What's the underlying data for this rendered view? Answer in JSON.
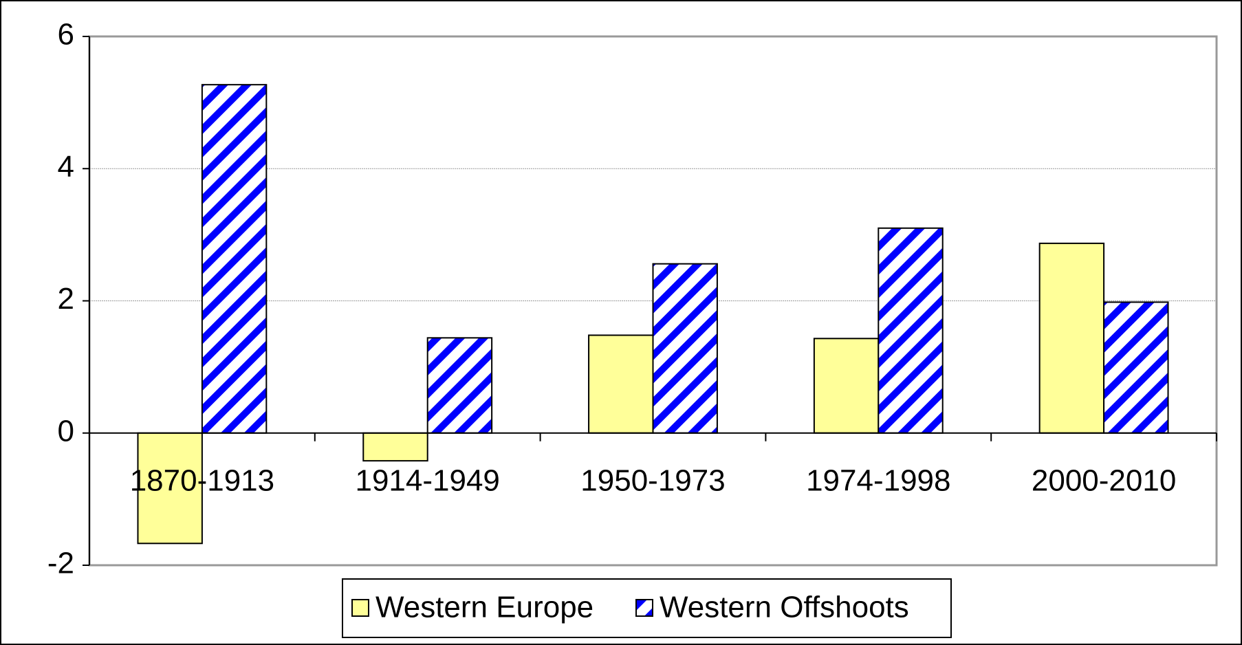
{
  "chart_data": {
    "type": "bar",
    "categories": [
      "1870-1913",
      "1914-1949",
      "1950-1973",
      "1974-1998",
      "2000-2010"
    ],
    "series": [
      {
        "name": "Western Europe",
        "color": "#ffff99",
        "values": [
          -1.67,
          -0.42,
          1.48,
          1.43,
          2.87
        ]
      },
      {
        "name": "Western Offshoots",
        "color": "#0000ff",
        "values": [
          5.27,
          1.44,
          2.56,
          3.1,
          1.98
        ]
      }
    ],
    "ylim": [
      -2,
      6
    ],
    "yticks": [
      -2,
      0,
      2,
      4,
      6
    ],
    "grid": true,
    "legend": "bottom"
  }
}
